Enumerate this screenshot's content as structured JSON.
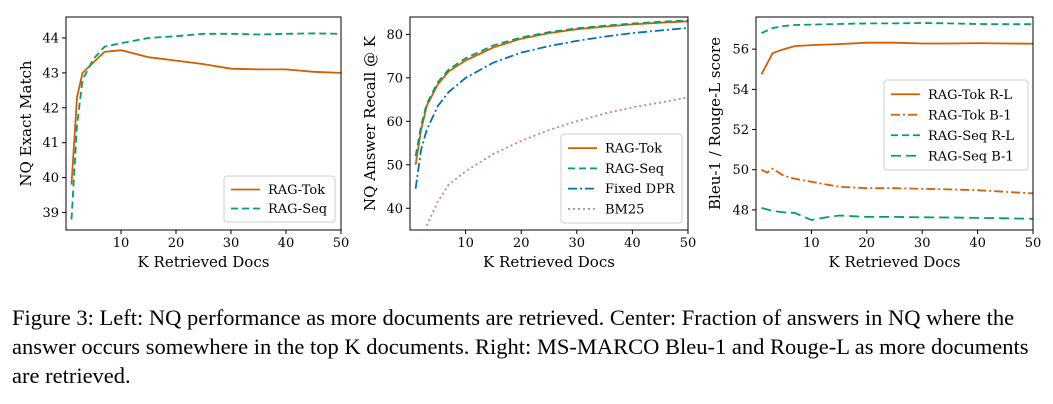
{
  "chart_data": [
    {
      "type": "line",
      "xlabel": "K Retrieved Docs",
      "ylabel": "NQ Exact Match",
      "xlim": [
        0,
        50
      ],
      "ylim": [
        38.5,
        44.6
      ],
      "xticks": [
        10,
        20,
        30,
        40,
        50
      ],
      "yticks": [
        39,
        40,
        41,
        42,
        43,
        44
      ],
      "legend_position": "lower-right",
      "series": [
        {
          "name": "RAG-Tok",
          "color": "#d55e00",
          "dash": "solid",
          "x": [
            1,
            2,
            3,
            5,
            7,
            10,
            15,
            20,
            25,
            30,
            35,
            40,
            45,
            50
          ],
          "y": [
            39.8,
            42.3,
            43.0,
            43.3,
            43.6,
            43.65,
            43.45,
            43.35,
            43.25,
            43.12,
            43.1,
            43.1,
            43.03,
            43.0
          ]
        },
        {
          "name": "RAG-Seq",
          "color": "#009e73",
          "dash": "dashed",
          "x": [
            1,
            2,
            3,
            5,
            7,
            10,
            15,
            20,
            25,
            30,
            35,
            40,
            45,
            50
          ],
          "y": [
            38.8,
            41.5,
            42.8,
            43.4,
            43.75,
            43.85,
            44.0,
            44.05,
            44.12,
            44.12,
            44.1,
            44.12,
            44.13,
            44.12
          ]
        }
      ]
    },
    {
      "type": "line",
      "xlabel": "K Retrieved Docs",
      "ylabel": "NQ Answer Recall @ K",
      "xlim": [
        0,
        50
      ],
      "ylim": [
        35,
        84
      ],
      "xticks": [
        10,
        20,
        30,
        40,
        50
      ],
      "yticks": [
        40,
        50,
        60,
        70,
        80
      ],
      "legend_position": "lower-right",
      "series": [
        {
          "name": "RAG-Tok",
          "color": "#d55e00",
          "dash": "solid",
          "x": [
            1,
            2,
            3,
            5,
            7,
            10,
            15,
            20,
            25,
            30,
            35,
            40,
            45,
            50
          ],
          "y": [
            50,
            58,
            63.5,
            68.5,
            71.5,
            74,
            77,
            79,
            80.3,
            81.2,
            81.8,
            82.3,
            82.7,
            83
          ]
        },
        {
          "name": "RAG-Seq",
          "color": "#009e73",
          "dash": "dashed",
          "x": [
            1,
            2,
            3,
            5,
            7,
            10,
            15,
            20,
            25,
            30,
            35,
            40,
            45,
            50
          ],
          "y": [
            52,
            59,
            64,
            69,
            72,
            74.5,
            77.5,
            79.3,
            80.5,
            81.4,
            82,
            82.5,
            82.9,
            83.2
          ]
        },
        {
          "name": "Fixed DPR",
          "color": "#0072b2",
          "dash": "dashdot",
          "x": [
            1,
            2,
            3,
            5,
            7,
            10,
            15,
            20,
            25,
            30,
            35,
            40,
            45,
            50
          ],
          "y": [
            44.5,
            53.5,
            58,
            63.5,
            66.8,
            70,
            73.5,
            75.8,
            77.3,
            78.5,
            79.5,
            80.3,
            80.9,
            81.5
          ]
        },
        {
          "name": "BM25",
          "color": "#cc79a7",
          "dash": "dotted",
          "x": [
            3,
            5,
            7,
            10,
            15,
            20,
            25,
            30,
            35,
            40,
            45,
            50
          ],
          "y": [
            36,
            41.5,
            45.5,
            48.5,
            52.5,
            55.5,
            58,
            60,
            61.8,
            63.2,
            64.3,
            65.5
          ]
        }
      ]
    },
    {
      "type": "line",
      "xlabel": "K Retrieved Docs",
      "ylabel": "Bleu-1 / Rouge-L score",
      "xlim": [
        0,
        50
      ],
      "ylim": [
        47.0,
        57.6
      ],
      "xticks": [
        10,
        20,
        30,
        40,
        50
      ],
      "yticks": [
        48,
        50,
        52,
        54,
        56
      ],
      "legend_position": "center-right",
      "series": [
        {
          "name": "RAG-Tok R-L",
          "color": "#d55e00",
          "dash": "solid",
          "x": [
            1,
            3,
            5,
            7,
            10,
            15,
            20,
            25,
            30,
            35,
            40,
            45,
            50
          ],
          "y": [
            54.75,
            55.8,
            56.0,
            56.15,
            56.2,
            56.25,
            56.32,
            56.32,
            56.28,
            56.28,
            56.3,
            56.28,
            56.27
          ]
        },
        {
          "name": "RAG-Tok B-1",
          "color": "#d55e00",
          "dash": "dashdot",
          "x": [
            1,
            2,
            3,
            5,
            7,
            10,
            15,
            20,
            25,
            30,
            35,
            40,
            45,
            50
          ],
          "y": [
            50.0,
            49.85,
            50.05,
            49.7,
            49.55,
            49.4,
            49.15,
            49.08,
            49.08,
            49.05,
            49.02,
            48.98,
            48.9,
            48.82
          ]
        },
        {
          "name": "RAG-Seq R-L",
          "color": "#009e73",
          "dash": "dashed",
          "x": [
            1,
            3,
            5,
            7,
            10,
            15,
            20,
            25,
            30,
            35,
            40,
            45,
            50
          ],
          "y": [
            56.8,
            57.05,
            57.15,
            57.2,
            57.22,
            57.25,
            57.28,
            57.28,
            57.3,
            57.28,
            57.25,
            57.24,
            57.24
          ]
        },
        {
          "name": "RAG-Seq B-1",
          "color": "#009e73",
          "dash": "longdash",
          "x": [
            1,
            3,
            5,
            7,
            10,
            12,
            15,
            20,
            25,
            30,
            35,
            40,
            45,
            50
          ],
          "y": [
            48.1,
            47.95,
            47.88,
            47.85,
            47.5,
            47.6,
            47.72,
            47.65,
            47.65,
            47.63,
            47.62,
            47.6,
            47.58,
            47.55
          ]
        }
      ]
    }
  ],
  "caption": "Figure 3: Left: NQ performance as more documents are retrieved. Center: Fraction of answers in NQ where the answer occurs somewhere in the top K documents. Right: MS-MARCO Bleu-1 and Rouge-L as more documents are retrieved."
}
